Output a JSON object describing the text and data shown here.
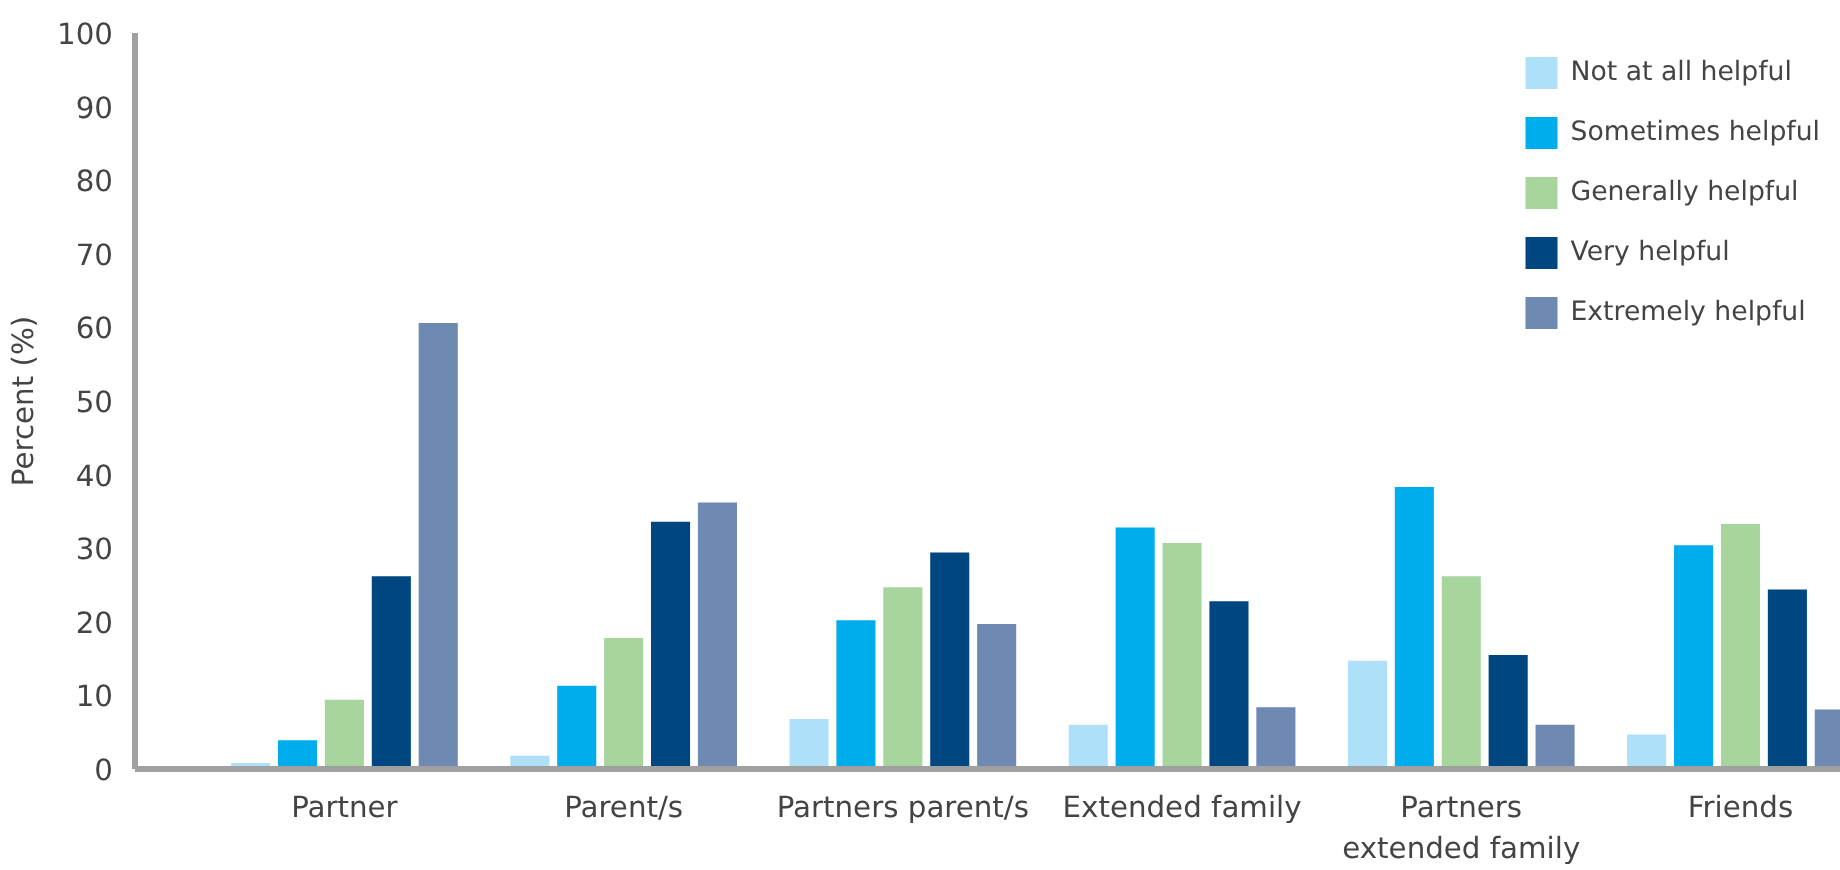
{
  "chart_data": {
    "type": "bar",
    "ylabel": "Percent (%)",
    "categories": [
      "Partner",
      "Parent/s",
      "Partners parent/s",
      "Extended family",
      "Partners\nextended family",
      "Friends"
    ],
    "series": [
      {
        "name": "Not at all helpful",
        "color": "#aee0fa",
        "values": [
          0.8,
          1.8,
          6.8,
          6.0,
          14.7,
          4.7
        ]
      },
      {
        "name": "Sometimes helpful",
        "color": "#00adec",
        "values": [
          3.9,
          11.3,
          20.2,
          32.8,
          38.3,
          30.4
        ]
      },
      {
        "name": "Generally helpful",
        "color": "#a8d49e",
        "values": [
          9.4,
          17.8,
          24.7,
          30.7,
          26.2,
          33.3
        ]
      },
      {
        "name": "Very helpful",
        "color": "#004680",
        "values": [
          26.2,
          33.6,
          29.4,
          22.8,
          15.5,
          24.4
        ]
      },
      {
        "name": "Extremely helpful",
        "color": "#6e89b2",
        "values": [
          60.6,
          36.2,
          19.7,
          8.4,
          6.0,
          8.1
        ]
      }
    ],
    "ylim": [
      0,
      100
    ],
    "yticks": [
      0,
      10,
      20,
      30,
      40,
      50,
      60,
      70,
      80,
      90,
      100
    ],
    "grid": false,
    "legend": "top right"
  }
}
